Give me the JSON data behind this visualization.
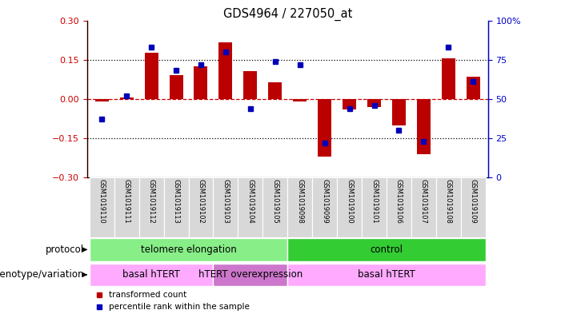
{
  "title": "GDS4964 / 227050_at",
  "samples": [
    "GSM1019110",
    "GSM1019111",
    "GSM1019112",
    "GSM1019113",
    "GSM1019102",
    "GSM1019103",
    "GSM1019104",
    "GSM1019105",
    "GSM1019098",
    "GSM1019099",
    "GSM1019100",
    "GSM1019101",
    "GSM1019106",
    "GSM1019107",
    "GSM1019108",
    "GSM1019109"
  ],
  "transformed_count": [
    -0.01,
    0.005,
    0.175,
    0.09,
    0.125,
    0.215,
    0.105,
    0.065,
    -0.01,
    -0.22,
    -0.04,
    -0.03,
    -0.1,
    -0.21,
    0.155,
    0.085
  ],
  "percentile_rank": [
    37,
    52,
    83,
    68,
    72,
    80,
    44,
    74,
    72,
    22,
    44,
    46,
    30,
    23,
    83,
    61
  ],
  "ylim_left": [
    -0.3,
    0.3
  ],
  "ylim_right": [
    0,
    100
  ],
  "yticks_left": [
    -0.3,
    -0.15,
    0,
    0.15,
    0.3
  ],
  "yticks_right": [
    0,
    25,
    50,
    75,
    100
  ],
  "hline_dotted": [
    0.15,
    -0.15
  ],
  "bar_color": "#bb0000",
  "dot_color": "#0000bb",
  "zero_line_color": "#cc0000",
  "bg_color_col": "#d8d8d8",
  "plot_bg": "#ffffff",
  "protocol_groups": [
    {
      "label": "telomere elongation",
      "start": 0,
      "end": 8,
      "color": "#88ee88"
    },
    {
      "label": "control",
      "start": 8,
      "end": 16,
      "color": "#33cc33"
    }
  ],
  "genotype_groups": [
    {
      "label": "basal hTERT",
      "start": 0,
      "end": 5,
      "color": "#ffaaff"
    },
    {
      "label": "hTERT overexpression",
      "start": 5,
      "end": 8,
      "color": "#cc77cc"
    },
    {
      "label": "basal hTERT",
      "start": 8,
      "end": 16,
      "color": "#ffaaff"
    }
  ],
  "legend_items": [
    {
      "color": "#bb0000",
      "label": "transformed count"
    },
    {
      "color": "#0000bb",
      "label": "percentile rank within the sample"
    }
  ],
  "xlabel_protocol": "protocol",
  "xlabel_genotype": "genotype/variation"
}
